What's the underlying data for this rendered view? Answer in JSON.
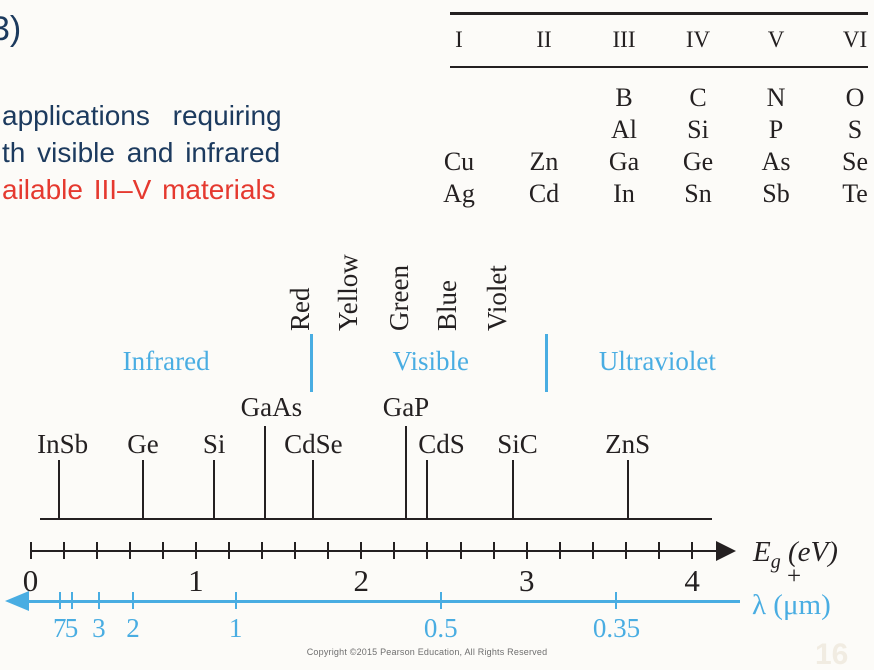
{
  "slide": {
    "corner_fragment": "3)",
    "lines": [
      {
        "text": "applications requiring",
        "color": "navy"
      },
      {
        "text": "th visible and infrared",
        "color": "navy"
      },
      {
        "text": "ailable III–V materials",
        "color": "red"
      }
    ]
  },
  "periodic_table": {
    "headers": [
      "I",
      "II",
      "III",
      "IV",
      "V",
      "VI"
    ],
    "rows": [
      [
        "",
        "",
        "B",
        "C",
        "N",
        "O"
      ],
      [
        "",
        "",
        "Al",
        "Si",
        "P",
        "S"
      ],
      [
        "Cu",
        "Zn",
        "Ga",
        "Ge",
        "As",
        "Se"
      ],
      [
        "Ag",
        "Cd",
        "In",
        "Sn",
        "Sb",
        "Te"
      ]
    ]
  },
  "diagram": {
    "spectrum_labels": [
      {
        "label": "Red",
        "e": 1.81
      },
      {
        "label": "Yellow",
        "e": 2.1
      },
      {
        "label": "Green",
        "e": 2.41
      },
      {
        "label": "Blue",
        "e": 2.7
      },
      {
        "label": "Violet",
        "e": 3.0
      }
    ],
    "regions": [
      {
        "label": "Infrared",
        "e": 0.82
      },
      {
        "label": "Visible",
        "e": 2.42
      },
      {
        "label": "Ultraviolet",
        "e": 3.79
      }
    ],
    "region_dividers_e": [
      1.7,
      3.12
    ],
    "materials": [
      {
        "name": "InSb",
        "eg": 0.17,
        "tall": false
      },
      {
        "name": "Ge",
        "eg": 0.68,
        "tall": false
      },
      {
        "name": "Si",
        "eg": 1.11,
        "tall": false
      },
      {
        "name": "GaAs",
        "eg": 1.42,
        "tall": true
      },
      {
        "name": "CdSe",
        "eg": 1.71,
        "tall": false
      },
      {
        "name": "GaP",
        "eg": 2.27,
        "tall": true
      },
      {
        "name": "CdS",
        "eg": 2.4,
        "tall": false
      },
      {
        "name": "SiC",
        "eg": 2.92,
        "tall": false
      },
      {
        "name": "ZnS",
        "eg": 3.61,
        "tall": false
      }
    ],
    "energy_axis": {
      "label_pre": "E",
      "label_sub": "g",
      "label_post": " (eV)",
      "min": 0,
      "max": 4,
      "tick_step": 0.2,
      "major_labels": [
        0,
        1,
        2,
        3,
        4
      ]
    },
    "plus_sign": "+",
    "wavelength_axis": {
      "label": "λ (μm)",
      "ticks": [
        7,
        5,
        3,
        2,
        1,
        0.5,
        0.35
      ],
      "ev_um_product": 1.24
    },
    "colors": {
      "accent": "#49ade2",
      "ink": "#242021",
      "navy": "#1c3a5e",
      "red": "#e5392f"
    }
  },
  "footer": {
    "copyright": "Copyright ©2015 Pearson Education, All Rights Reserved",
    "page_number": "16"
  }
}
